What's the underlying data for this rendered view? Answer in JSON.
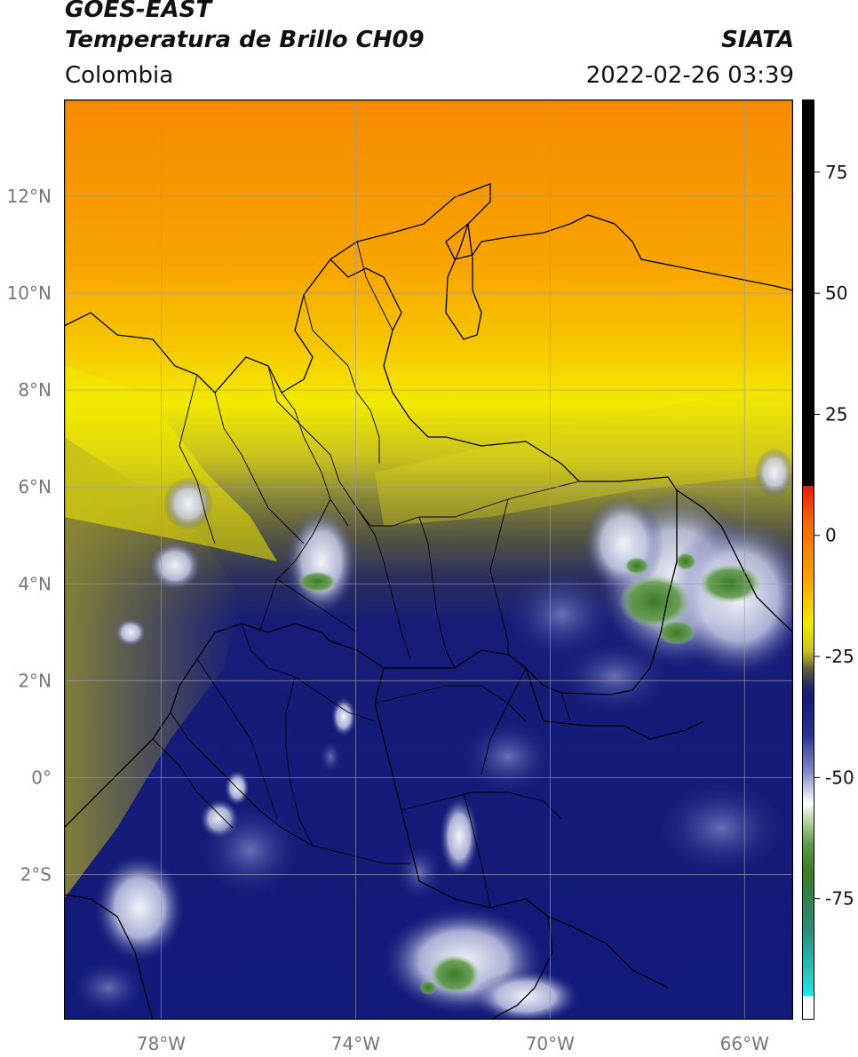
{
  "header": {
    "satellite": "GOES-EAST",
    "product": "Temperatura de Brillo CH09",
    "organization": "SIATA",
    "region": "Colombia",
    "timestamp": "2022-02-26 03:39"
  },
  "map": {
    "lon_range": [
      -80,
      -65
    ],
    "lat_range": [
      -5,
      14
    ],
    "lon_ticks": [
      {
        "value": -78,
        "label": "78°W"
      },
      {
        "value": -74,
        "label": "74°W"
      },
      {
        "value": -70,
        "label": "70°W"
      },
      {
        "value": -66,
        "label": "66°W"
      }
    ],
    "lat_ticks": [
      {
        "value": 12,
        "label": "12°N"
      },
      {
        "value": 10,
        "label": "10°N"
      },
      {
        "value": 8,
        "label": "8°N"
      },
      {
        "value": 6,
        "label": "6°N"
      },
      {
        "value": 4,
        "label": "4°N"
      },
      {
        "value": 2,
        "label": "2°N"
      },
      {
        "value": 0,
        "label": "0°"
      },
      {
        "value": -2,
        "label": "2°S"
      }
    ],
    "grid": true,
    "colors": {
      "warm": "#f79a00",
      "yellow": "#f2ea00",
      "olive": "#5f5e3a",
      "deep_blue": "#131a78",
      "cloud_white": "#e8ecf6",
      "cold_green": "#3f7a28",
      "border": "#000000"
    }
  },
  "colorbar": {
    "range": [
      -100,
      90
    ],
    "ticks": [
      {
        "value": 75,
        "label": "75"
      },
      {
        "value": 50,
        "label": "50"
      },
      {
        "value": 25,
        "label": "25"
      },
      {
        "value": 0,
        "label": "0"
      },
      {
        "value": -25,
        "label": "-25"
      },
      {
        "value": -50,
        "label": "-50"
      },
      {
        "value": -75,
        "label": "-75"
      }
    ]
  }
}
